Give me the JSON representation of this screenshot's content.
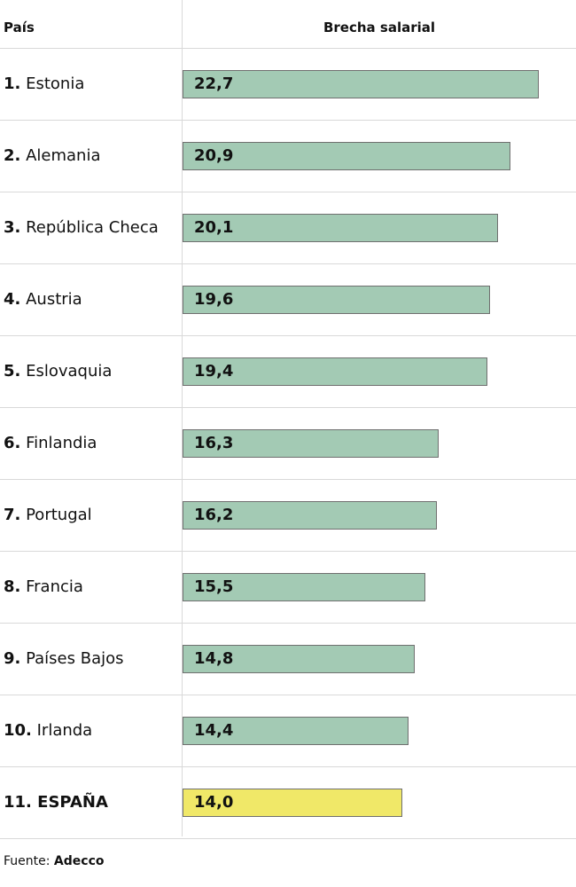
{
  "header": {
    "country_label": "País",
    "value_label": "Brecha salarial"
  },
  "colors": {
    "bar": "#a3cab4",
    "highlight_bar": "#f0e868",
    "border": "#6f6f6f",
    "gridline": "#d9d9d9"
  },
  "chart_data": {
    "type": "bar",
    "orientation": "horizontal",
    "categories": [
      "Estonia",
      "Alemania",
      "República Checa",
      "Austria",
      "Eslovaquia",
      "Finlandia",
      "Portugal",
      "Francia",
      "Países Bajos",
      "Irlanda",
      "ESPAÑA"
    ],
    "ranks": [
      "1.",
      "2.",
      "3.",
      "4.",
      "5.",
      "6.",
      "7.",
      "8.",
      "9.",
      "10.",
      "11."
    ],
    "values": [
      22.7,
      20.9,
      20.1,
      19.6,
      19.4,
      16.3,
      16.2,
      15.5,
      14.8,
      14.4,
      14.0
    ],
    "value_labels": [
      "22,7",
      "20,9",
      "20,1",
      "19,6",
      "19,4",
      "16,3",
      "16,2",
      "15,5",
      "14,8",
      "14,4",
      "14,0"
    ],
    "highlight": "ESPAÑA",
    "xlim": [
      0,
      25
    ],
    "xlabel": "Brecha salarial",
    "ylabel": "País",
    "grid": false,
    "legend": "none"
  },
  "footer": {
    "source_prefix": "Fuente:",
    "source_name": "Adecco"
  }
}
